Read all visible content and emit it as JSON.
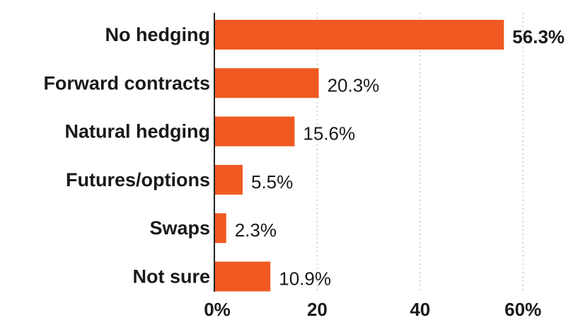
{
  "chart_data": {
    "type": "bar",
    "orientation": "horizontal",
    "categories": [
      "No hedging",
      "Forward contracts",
      "Natural hedging",
      "Futures/options",
      "Swaps",
      "Not sure"
    ],
    "values": [
      56.3,
      20.3,
      15.6,
      5.5,
      2.3,
      10.9
    ],
    "value_labels": [
      "56.3%",
      "20.3%",
      "15.6%",
      "5.5%",
      "2.3%",
      "10.9%"
    ],
    "x_ticks": [
      0,
      20,
      40,
      60
    ],
    "x_tick_labels": [
      "0%",
      "20",
      "40",
      "60%"
    ],
    "xlim": [
      0,
      60
    ],
    "grid": true,
    "bar_color": "#f05a22",
    "title": "",
    "xlabel": "",
    "ylabel": ""
  }
}
